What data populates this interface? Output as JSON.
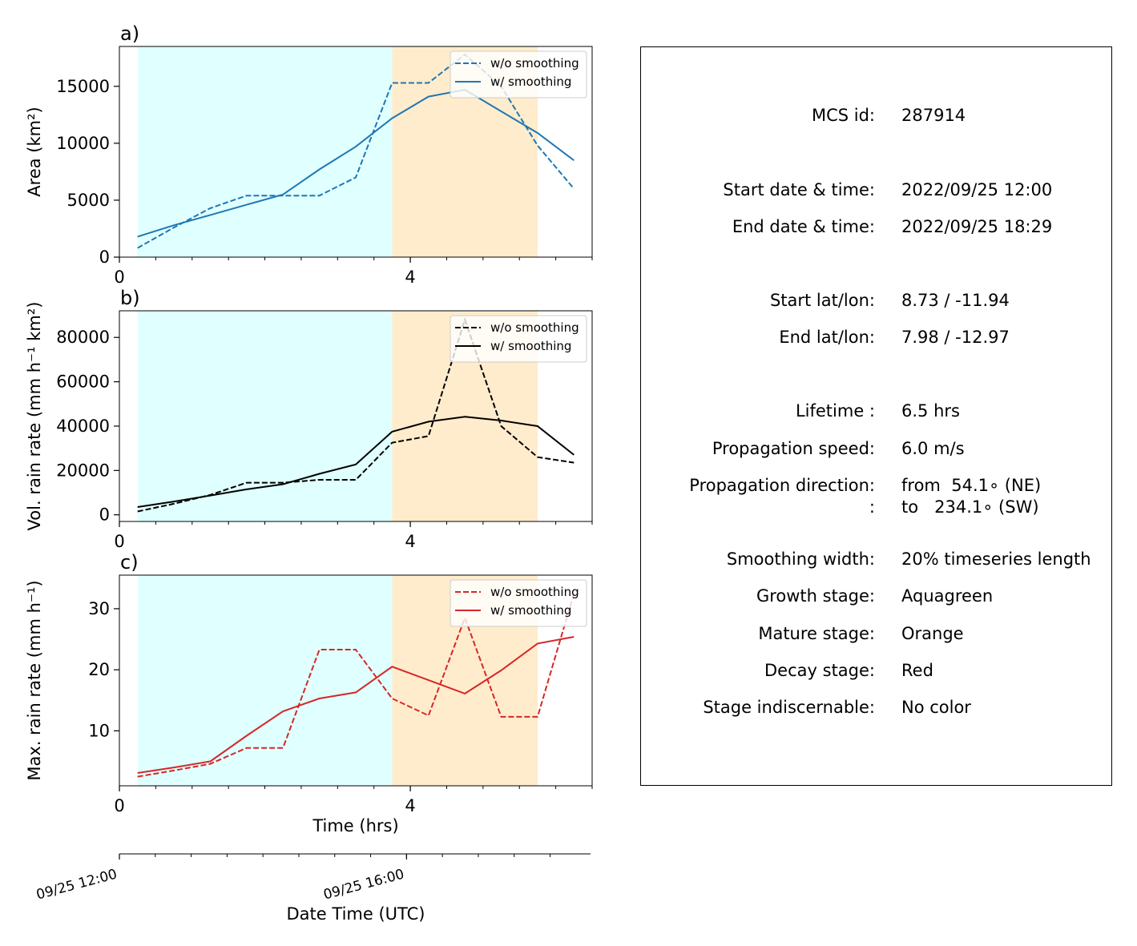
{
  "colors": {
    "growth": "#e0ffff",
    "mature": "#ffeccc",
    "area": "#1f77b4",
    "volrain": "#000000",
    "maxrain": "#d62728"
  },
  "chart_data": [
    {
      "type": "line",
      "panel_label": "a)",
      "ylabel": "Area  (km²)",
      "xlabel": "",
      "xlim": [
        0,
        6.5
      ],
      "ylim": [
        0,
        18500
      ],
      "xticks": [
        0,
        4
      ],
      "yticks": [
        0,
        5000,
        10000,
        15000
      ],
      "grid": false,
      "legend": "top-right",
      "stages": [
        {
          "name": "Growth stage",
          "x0": 0.25,
          "x1": 3.75,
          "color": "#e0ffff"
        },
        {
          "name": "Mature stage",
          "x0": 3.75,
          "x1": 5.75,
          "color": "#ffeccc"
        }
      ],
      "series": [
        {
          "name": "w/o smoothing",
          "style": "dashed",
          "color": "#1f77b4",
          "x": [
            0.25,
            0.75,
            1.25,
            1.75,
            2.25,
            2.75,
            3.25,
            3.75,
            4.25,
            4.75,
            5.25,
            5.75,
            6.25
          ],
          "y": [
            800,
            2600,
            4300,
            5400,
            5400,
            5400,
            7000,
            15300,
            15300,
            17800,
            15000,
            9800,
            6000
          ]
        },
        {
          "name": "w/ smoothing",
          "style": "solid",
          "color": "#1f77b4",
          "x": [
            0.25,
            0.75,
            1.25,
            1.75,
            2.25,
            2.75,
            3.25,
            3.75,
            4.25,
            4.75,
            5.25,
            5.75,
            6.25
          ],
          "y": [
            1800,
            2800,
            3700,
            4600,
            5500,
            7700,
            9700,
            12200,
            14100,
            14700,
            12800,
            10900,
            8500
          ]
        }
      ]
    },
    {
      "type": "line",
      "panel_label": "b)",
      "ylabel": "Vol. rain rate (mm h⁻¹ km²)",
      "xlabel": "",
      "xlim": [
        0,
        6.5
      ],
      "ylim": [
        -3000,
        92000
      ],
      "xticks": [
        0,
        4
      ],
      "yticks": [
        0,
        20000,
        40000,
        60000,
        80000
      ],
      "grid": false,
      "legend": "top-right",
      "stages": [
        {
          "name": "Growth stage",
          "x0": 0.25,
          "x1": 3.75,
          "color": "#e0ffff"
        },
        {
          "name": "Mature stage",
          "x0": 3.75,
          "x1": 5.75,
          "color": "#ffeccc"
        }
      ],
      "series": [
        {
          "name": "w/o smoothing",
          "style": "dashed",
          "color": "#000000",
          "x": [
            0.25,
            0.75,
            1.25,
            1.75,
            2.25,
            2.75,
            3.25,
            3.75,
            4.25,
            4.75,
            5.25,
            5.75,
            6.25
          ],
          "y": [
            1500,
            5000,
            9000,
            14500,
            14500,
            15800,
            15800,
            32500,
            35500,
            88000,
            40000,
            26000,
            23500
          ]
        },
        {
          "name": "w/ smoothing",
          "style": "solid",
          "color": "#000000",
          "x": [
            0.25,
            0.75,
            1.25,
            1.75,
            2.25,
            2.75,
            3.25,
            3.75,
            4.25,
            4.75,
            5.25,
            5.75,
            6.25
          ],
          "y": [
            3500,
            6000,
            8700,
            11500,
            13800,
            18500,
            22700,
            37500,
            42000,
            44200,
            42500,
            40000,
            27000
          ]
        }
      ]
    },
    {
      "type": "line",
      "panel_label": "c)",
      "ylabel": "Max. rain rate  (mm h⁻¹)",
      "xlabel": "Time (hrs)",
      "xlim": [
        0,
        6.5
      ],
      "ylim": [
        1,
        35.5
      ],
      "xticks": [
        0,
        4
      ],
      "yticks": [
        10,
        20,
        30
      ],
      "grid": false,
      "legend": "top-right",
      "stages": [
        {
          "name": "Growth stage",
          "x0": 0.25,
          "x1": 3.75,
          "color": "#e0ffff"
        },
        {
          "name": "Mature stage",
          "x0": 3.75,
          "x1": 5.75,
          "color": "#ffeccc"
        }
      ],
      "series": [
        {
          "name": "w/o smoothing",
          "style": "dashed",
          "color": "#d62728",
          "x": [
            0.25,
            0.75,
            1.25,
            1.75,
            2.25,
            2.75,
            3.25,
            3.75,
            4.25,
            4.75,
            5.25,
            5.75,
            6.25
          ],
          "y": [
            2.5,
            3.5,
            4.6,
            7.2,
            7.2,
            23.3,
            23.3,
            15.3,
            12.5,
            28.5,
            12.3,
            12.3,
            32.5
          ]
        },
        {
          "name": "w/ smoothing",
          "style": "solid",
          "color": "#d62728",
          "x": [
            0.25,
            0.75,
            1.25,
            1.75,
            2.25,
            2.75,
            3.25,
            3.75,
            4.25,
            4.75,
            5.25,
            5.75,
            6.25
          ],
          "y": [
            3.1,
            4.0,
            5.0,
            9.2,
            13.2,
            15.3,
            16.3,
            20.5,
            18.3,
            16.1,
            19.9,
            24.3,
            25.4
          ]
        }
      ]
    },
    {
      "type": "line",
      "panel_label": "",
      "role": "secondary-time-axis",
      "xlabel": "Date Time (UTC)",
      "xlim": [
        0,
        6.5
      ],
      "xticks": [
        0,
        4
      ],
      "xticklabels": [
        "09/25 12:00",
        "09/25 16:00"
      ],
      "series": []
    }
  ],
  "info": {
    "rows": [
      {
        "label": "MCS id:",
        "value": "287914"
      },
      {
        "label": "Start date & time:",
        "value": "2022/09/25 12:00"
      },
      {
        "label": "End date & time:",
        "value": "2022/09/25 18:29"
      },
      {
        "label": "Start lat/lon:",
        "value": "8.73 / -11.94"
      },
      {
        "label": "End lat/lon:",
        "value": "7.98 / -12.97"
      },
      {
        "label": "Lifetime :",
        "value": "6.5 hrs"
      },
      {
        "label": "Propagation speed:",
        "value": "6.0 m/s"
      },
      {
        "label": "Propagation direction:",
        "value": "from  54.1∘ (NE)"
      },
      {
        "label": ":",
        "value": "to   234.1∘ (SW)"
      },
      {
        "label": "Smoothing width:",
        "value": "20% timeseries length"
      },
      {
        "label": "Growth stage:",
        "value": "Aquagreen"
      },
      {
        "label": "Mature stage:",
        "value": "Orange"
      },
      {
        "label": "Decay stage:",
        "value": "Red"
      },
      {
        "label": "Stage indiscernable:",
        "value": "No color"
      }
    ]
  }
}
